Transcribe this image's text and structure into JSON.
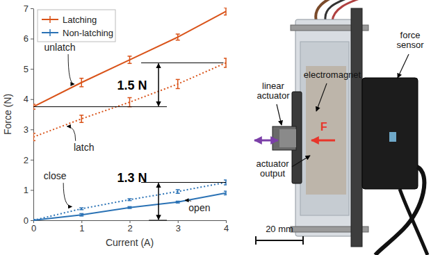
{
  "chart_data": {
    "type": "line",
    "xlabel": "Current (A)",
    "ylabel": "Force (N)",
    "x": [
      0,
      1,
      2,
      3,
      4
    ],
    "xlim": [
      0,
      4
    ],
    "ylim": [
      0,
      7
    ],
    "xticks": [
      0,
      1,
      2,
      3,
      4
    ],
    "yticks": [
      0,
      1,
      2,
      3,
      4,
      5,
      6,
      7
    ],
    "legend": "upper left",
    "series": [
      {
        "name": "Latching",
        "label": "unlatch",
        "color": "#d95319",
        "line_style": "solid",
        "marker": "errorbar",
        "values": [
          3.75,
          4.55,
          5.3,
          6.05,
          6.9
        ],
        "errors": [
          0.08,
          0.14,
          0.12,
          0.1,
          0.12
        ]
      },
      {
        "name": "Latching",
        "label": "latch",
        "color": "#d95319",
        "line_style": "dotted",
        "marker": "errorbar",
        "values": [
          2.75,
          3.35,
          3.9,
          4.5,
          5.2
        ],
        "errors": [
          0.12,
          0.12,
          0.15,
          0.15,
          0.15
        ]
      },
      {
        "name": "Non-latching",
        "label": "close",
        "color": "#2a72b5",
        "line_style": "dotted",
        "marker": "errorbar",
        "values": [
          0,
          0.38,
          0.68,
          0.95,
          1.25
        ],
        "errors": [
          0.02,
          0.03,
          0.03,
          0.06,
          0.08
        ]
      },
      {
        "name": "Non-latching",
        "label": "open",
        "color": "#2a72b5",
        "line_style": "solid",
        "marker": "errorbar",
        "values": [
          0,
          0.18,
          0.42,
          0.6,
          0.9
        ],
        "errors": [
          0.02,
          0.04,
          0.03,
          0.03,
          0.06
        ]
      }
    ],
    "curve_labels": [
      {
        "x": 0.55,
        "y": 5.6,
        "arrow_to": [
          0.85,
          4.5
        ]
      },
      {
        "x": 1.05,
        "y": 2.3,
        "arrow_to": [
          0.7,
          3.1
        ]
      },
      {
        "x": 0.45,
        "y": 1.35,
        "arrow_to": [
          0.8,
          0.45
        ]
      },
      {
        "x": 3.45,
        "y": 0.3,
        "arrow_to": [
          3.15,
          0.66
        ]
      }
    ],
    "annotations": [
      {
        "text": "1.5 N",
        "x": 2.05,
        "y": 4.45,
        "arrow_x": 2.6,
        "y_range": [
          3.75,
          5.2
        ],
        "x_range": [
          0,
          3.95
        ]
      },
      {
        "text": "1.3 N",
        "x": 2.05,
        "y": 1.4,
        "arrow_x": 2.6,
        "y_range": [
          0,
          1.25
        ],
        "x_range": [
          2.4,
          4
        ]
      }
    ]
  },
  "diagram": {
    "labels": [
      "electromagnet",
      "linear actuator",
      "actuator output",
      "force sensor",
      "F"
    ],
    "scale_bar": "20 mm"
  }
}
